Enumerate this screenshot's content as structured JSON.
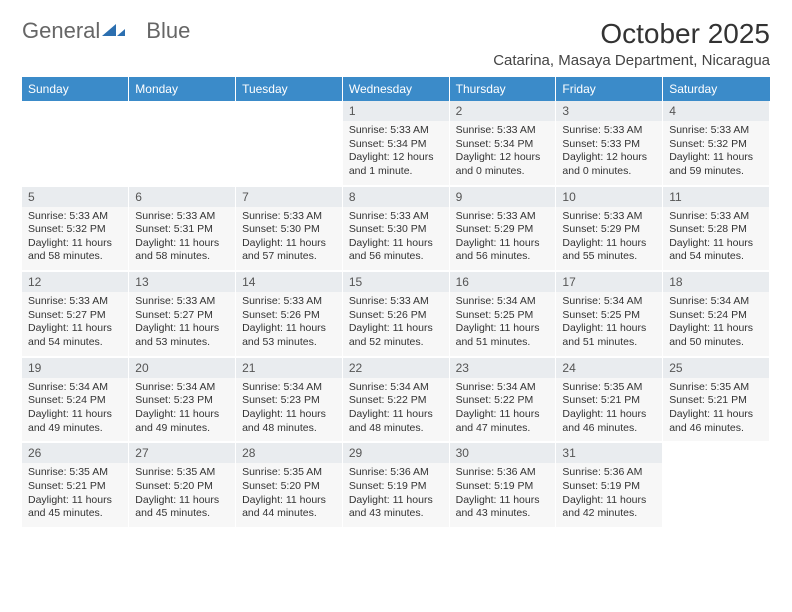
{
  "logo": {
    "text1": "General",
    "text2": "Blue"
  },
  "title": "October 2025",
  "location": "Catarina, Masaya Department, Nicaragua",
  "colors": {
    "header_bg": "#3b8bc9",
    "header_text": "#ffffff",
    "daynum_bg": "#e9ecef",
    "detail_bg": "#f7f7f7",
    "page_bg": "#ffffff",
    "logo_accent": "#2b6fb0"
  },
  "weekdays": [
    "Sunday",
    "Monday",
    "Tuesday",
    "Wednesday",
    "Thursday",
    "Friday",
    "Saturday"
  ],
  "weeks": [
    {
      "nums": [
        "",
        "",
        "",
        "1",
        "2",
        "3",
        "4"
      ],
      "details": [
        "",
        "",
        "",
        "Sunrise: 5:33 AM\nSunset: 5:34 PM\nDaylight: 12 hours and 1 minute.",
        "Sunrise: 5:33 AM\nSunset: 5:34 PM\nDaylight: 12 hours and 0 minutes.",
        "Sunrise: 5:33 AM\nSunset: 5:33 PM\nDaylight: 12 hours and 0 minutes.",
        "Sunrise: 5:33 AM\nSunset: 5:32 PM\nDaylight: 11 hours and 59 minutes."
      ]
    },
    {
      "nums": [
        "5",
        "6",
        "7",
        "8",
        "9",
        "10",
        "11"
      ],
      "details": [
        "Sunrise: 5:33 AM\nSunset: 5:32 PM\nDaylight: 11 hours and 58 minutes.",
        "Sunrise: 5:33 AM\nSunset: 5:31 PM\nDaylight: 11 hours and 58 minutes.",
        "Sunrise: 5:33 AM\nSunset: 5:30 PM\nDaylight: 11 hours and 57 minutes.",
        "Sunrise: 5:33 AM\nSunset: 5:30 PM\nDaylight: 11 hours and 56 minutes.",
        "Sunrise: 5:33 AM\nSunset: 5:29 PM\nDaylight: 11 hours and 56 minutes.",
        "Sunrise: 5:33 AM\nSunset: 5:29 PM\nDaylight: 11 hours and 55 minutes.",
        "Sunrise: 5:33 AM\nSunset: 5:28 PM\nDaylight: 11 hours and 54 minutes."
      ]
    },
    {
      "nums": [
        "12",
        "13",
        "14",
        "15",
        "16",
        "17",
        "18"
      ],
      "details": [
        "Sunrise: 5:33 AM\nSunset: 5:27 PM\nDaylight: 11 hours and 54 minutes.",
        "Sunrise: 5:33 AM\nSunset: 5:27 PM\nDaylight: 11 hours and 53 minutes.",
        "Sunrise: 5:33 AM\nSunset: 5:26 PM\nDaylight: 11 hours and 53 minutes.",
        "Sunrise: 5:33 AM\nSunset: 5:26 PM\nDaylight: 11 hours and 52 minutes.",
        "Sunrise: 5:34 AM\nSunset: 5:25 PM\nDaylight: 11 hours and 51 minutes.",
        "Sunrise: 5:34 AM\nSunset: 5:25 PM\nDaylight: 11 hours and 51 minutes.",
        "Sunrise: 5:34 AM\nSunset: 5:24 PM\nDaylight: 11 hours and 50 minutes."
      ]
    },
    {
      "nums": [
        "19",
        "20",
        "21",
        "22",
        "23",
        "24",
        "25"
      ],
      "details": [
        "Sunrise: 5:34 AM\nSunset: 5:24 PM\nDaylight: 11 hours and 49 minutes.",
        "Sunrise: 5:34 AM\nSunset: 5:23 PM\nDaylight: 11 hours and 49 minutes.",
        "Sunrise: 5:34 AM\nSunset: 5:23 PM\nDaylight: 11 hours and 48 minutes.",
        "Sunrise: 5:34 AM\nSunset: 5:22 PM\nDaylight: 11 hours and 48 minutes.",
        "Sunrise: 5:34 AM\nSunset: 5:22 PM\nDaylight: 11 hours and 47 minutes.",
        "Sunrise: 5:35 AM\nSunset: 5:21 PM\nDaylight: 11 hours and 46 minutes.",
        "Sunrise: 5:35 AM\nSunset: 5:21 PM\nDaylight: 11 hours and 46 minutes."
      ]
    },
    {
      "nums": [
        "26",
        "27",
        "28",
        "29",
        "30",
        "31",
        ""
      ],
      "details": [
        "Sunrise: 5:35 AM\nSunset: 5:21 PM\nDaylight: 11 hours and 45 minutes.",
        "Sunrise: 5:35 AM\nSunset: 5:20 PM\nDaylight: 11 hours and 45 minutes.",
        "Sunrise: 5:35 AM\nSunset: 5:20 PM\nDaylight: 11 hours and 44 minutes.",
        "Sunrise: 5:36 AM\nSunset: 5:19 PM\nDaylight: 11 hours and 43 minutes.",
        "Sunrise: 5:36 AM\nSunset: 5:19 PM\nDaylight: 11 hours and 43 minutes.",
        "Sunrise: 5:36 AM\nSunset: 5:19 PM\nDaylight: 11 hours and 42 minutes.",
        ""
      ]
    }
  ]
}
